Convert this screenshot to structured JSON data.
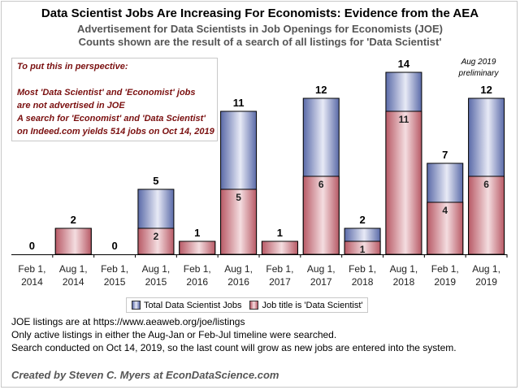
{
  "titles": {
    "main": "Data Scientist Jobs Are Increasing For Economists: Evidence from the AEA",
    "sub1": "Advertisement for Data Scientists in Job Openings for Economists (JOE)",
    "sub2": "Counts shown are the result of a search of all listings for 'Data Scientist'"
  },
  "note": {
    "lines": [
      "To put this in perspective:",
      "",
      "Most 'Data Scientist' and 'Economist' jobs",
      "are not advertised in JOE",
      "A search for 'Economist' and 'Data Scientist'",
      "on Indeed.com yields 514 jobs on Oct 14, 2019"
    ]
  },
  "annotation": {
    "line1": "Aug 2019",
    "line2": "preliminary"
  },
  "legend": {
    "total": "Total Data Scientist Jobs",
    "title": "Job title is 'Data Scientist'"
  },
  "footnotes": [
    "JOE listings are at https://www.aeaweb.org/joe/listings",
    "Only active listings in either the Aug-Jan or Feb-Jul timeline were searched.",
    "Search conducted on Oct 14, 2019, so the last count will grow as new jobs are entered into the system."
  ],
  "credit": "Created by Steven C. Myers at EconDataScience.com",
  "colors": {
    "total_dark": "#5a6aa8",
    "total_light": "#e8eaf6",
    "title_dark": "#b85a66",
    "title_light": "#f4dde0"
  },
  "chart_data": {
    "type": "bar",
    "stacked": "overlay",
    "categories": [
      [
        "Feb 1,",
        "2014"
      ],
      [
        "Aug 1,",
        "2014"
      ],
      [
        "Feb 1,",
        "2015"
      ],
      [
        "Aug 1,",
        "2015"
      ],
      [
        "Feb 1,",
        "2016"
      ],
      [
        "Aug 1,",
        "2016"
      ],
      [
        "Feb 1,",
        "2017"
      ],
      [
        "Aug 1,",
        "2017"
      ],
      [
        "Feb 1,",
        "2018"
      ],
      [
        "Aug 1,",
        "2018"
      ],
      [
        "Feb 1,",
        "2019"
      ],
      [
        "Aug 1,",
        "2019"
      ]
    ],
    "series": [
      {
        "name": "Total Data Scientist Jobs",
        "values": [
          0,
          2,
          0,
          5,
          1,
          11,
          1,
          12,
          2,
          14,
          7,
          12
        ]
      },
      {
        "name": "Job title is 'Data Scientist'",
        "values": [
          0,
          2,
          0,
          2,
          1,
          5,
          1,
          6,
          1,
          11,
          4,
          6
        ]
      }
    ],
    "total_labels": [
      "0",
      "2",
      "0",
      "5",
      "1",
      "11",
      "1",
      "12",
      "2",
      "14",
      "7",
      "12"
    ],
    "title_labels": [
      "",
      "",
      "",
      "2",
      "",
      "5",
      "",
      "6",
      "1",
      "11",
      "4",
      "6"
    ],
    "ylim": [
      0,
      15
    ],
    "grid": false,
    "legend_position": "bottom"
  }
}
